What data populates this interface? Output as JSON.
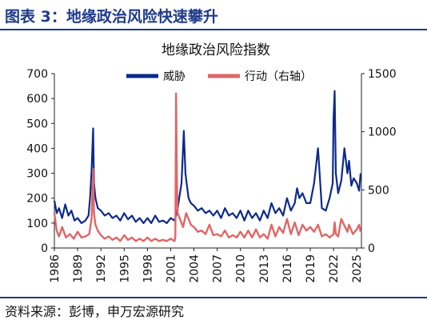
{
  "figure": {
    "title": "图表 3：地缘政治风险快速攀升",
    "source": "资料来源：彭博，申万宏源研究"
  },
  "colors": {
    "threat": "#0d2a8c",
    "act": "#e06666",
    "accent": "#1f3a8a"
  },
  "chart_data": {
    "type": "line",
    "title": "地缘政治风险指数",
    "x_range": [
      1986,
      2025.6
    ],
    "x_ticks": [
      "1986",
      "1989",
      "1992",
      "1995",
      "1998",
      "2001",
      "2004",
      "2007",
      "2010",
      "2013",
      "2016",
      "2019",
      "2022",
      "2025"
    ],
    "y_left": {
      "range": [
        0,
        700
      ],
      "ticks": [
        "0",
        "100",
        "200",
        "300",
        "400",
        "500",
        "600",
        "700"
      ]
    },
    "y_right": {
      "range": [
        0,
        1500
      ],
      "ticks": [
        "0",
        "500",
        "1000",
        "1500"
      ]
    },
    "legend_position": "top-center",
    "series": [
      {
        "name": "威胁",
        "axis": "left",
        "color": "#0d2a8c",
        "x": [
          1986.0,
          1986.3,
          1986.6,
          1987.0,
          1987.4,
          1987.8,
          1988.2,
          1988.6,
          1989.0,
          1989.5,
          1990.0,
          1990.4,
          1990.6,
          1990.8,
          1991.0,
          1991.1,
          1991.3,
          1991.6,
          1992.0,
          1992.5,
          1993.0,
          1993.5,
          1994.0,
          1994.5,
          1995.0,
          1995.5,
          1996.0,
          1996.5,
          1997.0,
          1997.5,
          1998.0,
          1998.5,
          1999.0,
          1999.5,
          2000.0,
          2000.5,
          2001.0,
          2001.5,
          2001.7,
          2001.9,
          2002.1,
          2002.4,
          2002.7,
          2002.9,
          2003.1,
          2003.3,
          2003.6,
          2004.0,
          2004.5,
          2005.0,
          2005.5,
          2006.0,
          2006.5,
          2007.0,
          2007.5,
          2008.0,
          2008.5,
          2009.0,
          2009.5,
          2010.0,
          2010.5,
          2011.0,
          2011.5,
          2012.0,
          2012.5,
          2013.0,
          2013.5,
          2014.0,
          2014.5,
          2015.0,
          2015.5,
          2016.0,
          2016.5,
          2017.0,
          2017.3,
          2017.6,
          2018.0,
          2018.5,
          2019.0,
          2019.5,
          2020.0,
          2020.5,
          2021.0,
          2021.5,
          2021.9,
          2022.0,
          2022.15,
          2022.3,
          2022.6,
          2023.0,
          2023.4,
          2023.8,
          2024.0,
          2024.3,
          2024.6,
          2025.0,
          2025.3,
          2025.5
        ],
        "y": [
          190,
          140,
          160,
          120,
          175,
          130,
          150,
          110,
          120,
          100,
          110,
          130,
          200,
          310,
          480,
          260,
          200,
          160,
          150,
          130,
          140,
          120,
          130,
          110,
          140,
          115,
          130,
          105,
          120,
          100,
          120,
          100,
          130,
          105,
          110,
          100,
          120,
          110,
          130,
          160,
          200,
          260,
          470,
          300,
          250,
          200,
          180,
          170,
          150,
          160,
          140,
          150,
          130,
          150,
          120,
          160,
          130,
          140,
          120,
          150,
          110,
          150,
          120,
          140,
          110,
          150,
          120,
          180,
          140,
          160,
          130,
          200,
          150,
          180,
          240,
          200,
          220,
          180,
          180,
          260,
          400,
          160,
          150,
          200,
          260,
          520,
          630,
          300,
          220,
          270,
          400,
          300,
          350,
          250,
          280,
          260,
          230,
          300
        ]
      },
      {
        "name": "行动（右轴）",
        "axis": "right",
        "color": "#e06666",
        "x": [
          1986.0,
          1986.3,
          1986.6,
          1987.0,
          1987.5,
          1988.0,
          1988.5,
          1989.0,
          1989.5,
          1990.0,
          1990.5,
          1990.8,
          1991.0,
          1991.1,
          1991.3,
          1991.6,
          1992.0,
          1992.5,
          1993.0,
          1993.5,
          1994.0,
          1994.5,
          1995.0,
          1995.5,
          1996.0,
          1996.5,
          1997.0,
          1997.5,
          1998.0,
          1998.5,
          1999.0,
          1999.5,
          2000.0,
          2000.5,
          2001.0,
          2001.5,
          2001.6,
          2001.7,
          2001.8,
          2001.9,
          2002.2,
          2002.6,
          2003.0,
          2003.3,
          2003.6,
          2004.0,
          2004.5,
          2005.0,
          2005.5,
          2006.0,
          2006.5,
          2007.0,
          2007.5,
          2008.0,
          2008.5,
          2009.0,
          2009.5,
          2010.0,
          2010.5,
          2011.0,
          2011.5,
          2012.0,
          2012.5,
          2013.0,
          2013.5,
          2014.0,
          2014.5,
          2015.0,
          2015.5,
          2016.0,
          2016.5,
          2017.0,
          2017.5,
          2018.0,
          2018.5,
          2019.0,
          2019.5,
          2020.0,
          2020.5,
          2021.0,
          2021.5,
          2022.0,
          2022.15,
          2022.3,
          2022.6,
          2023.0,
          2023.5,
          2023.8,
          2024.0,
          2024.5,
          2025.0,
          2025.3,
          2025.5
        ],
        "y": [
          300,
          150,
          100,
          180,
          90,
          120,
          80,
          140,
          90,
          100,
          120,
          250,
          680,
          300,
          200,
          150,
          110,
          80,
          100,
          70,
          90,
          60,
          110,
          70,
          90,
          60,
          80,
          60,
          90,
          60,
          80,
          60,
          70,
          60,
          80,
          60,
          100,
          1330,
          600,
          300,
          250,
          180,
          300,
          250,
          200,
          180,
          140,
          150,
          120,
          200,
          110,
          120,
          100,
          150,
          90,
          110,
          90,
          140,
          90,
          150,
          90,
          160,
          90,
          120,
          80,
          200,
          100,
          180,
          130,
          250,
          120,
          220,
          110,
          200,
          150,
          180,
          140,
          200,
          100,
          120,
          90,
          120,
          220,
          120,
          100,
          250,
          180,
          140,
          200,
          120,
          160,
          200,
          140
        ]
      }
    ]
  }
}
